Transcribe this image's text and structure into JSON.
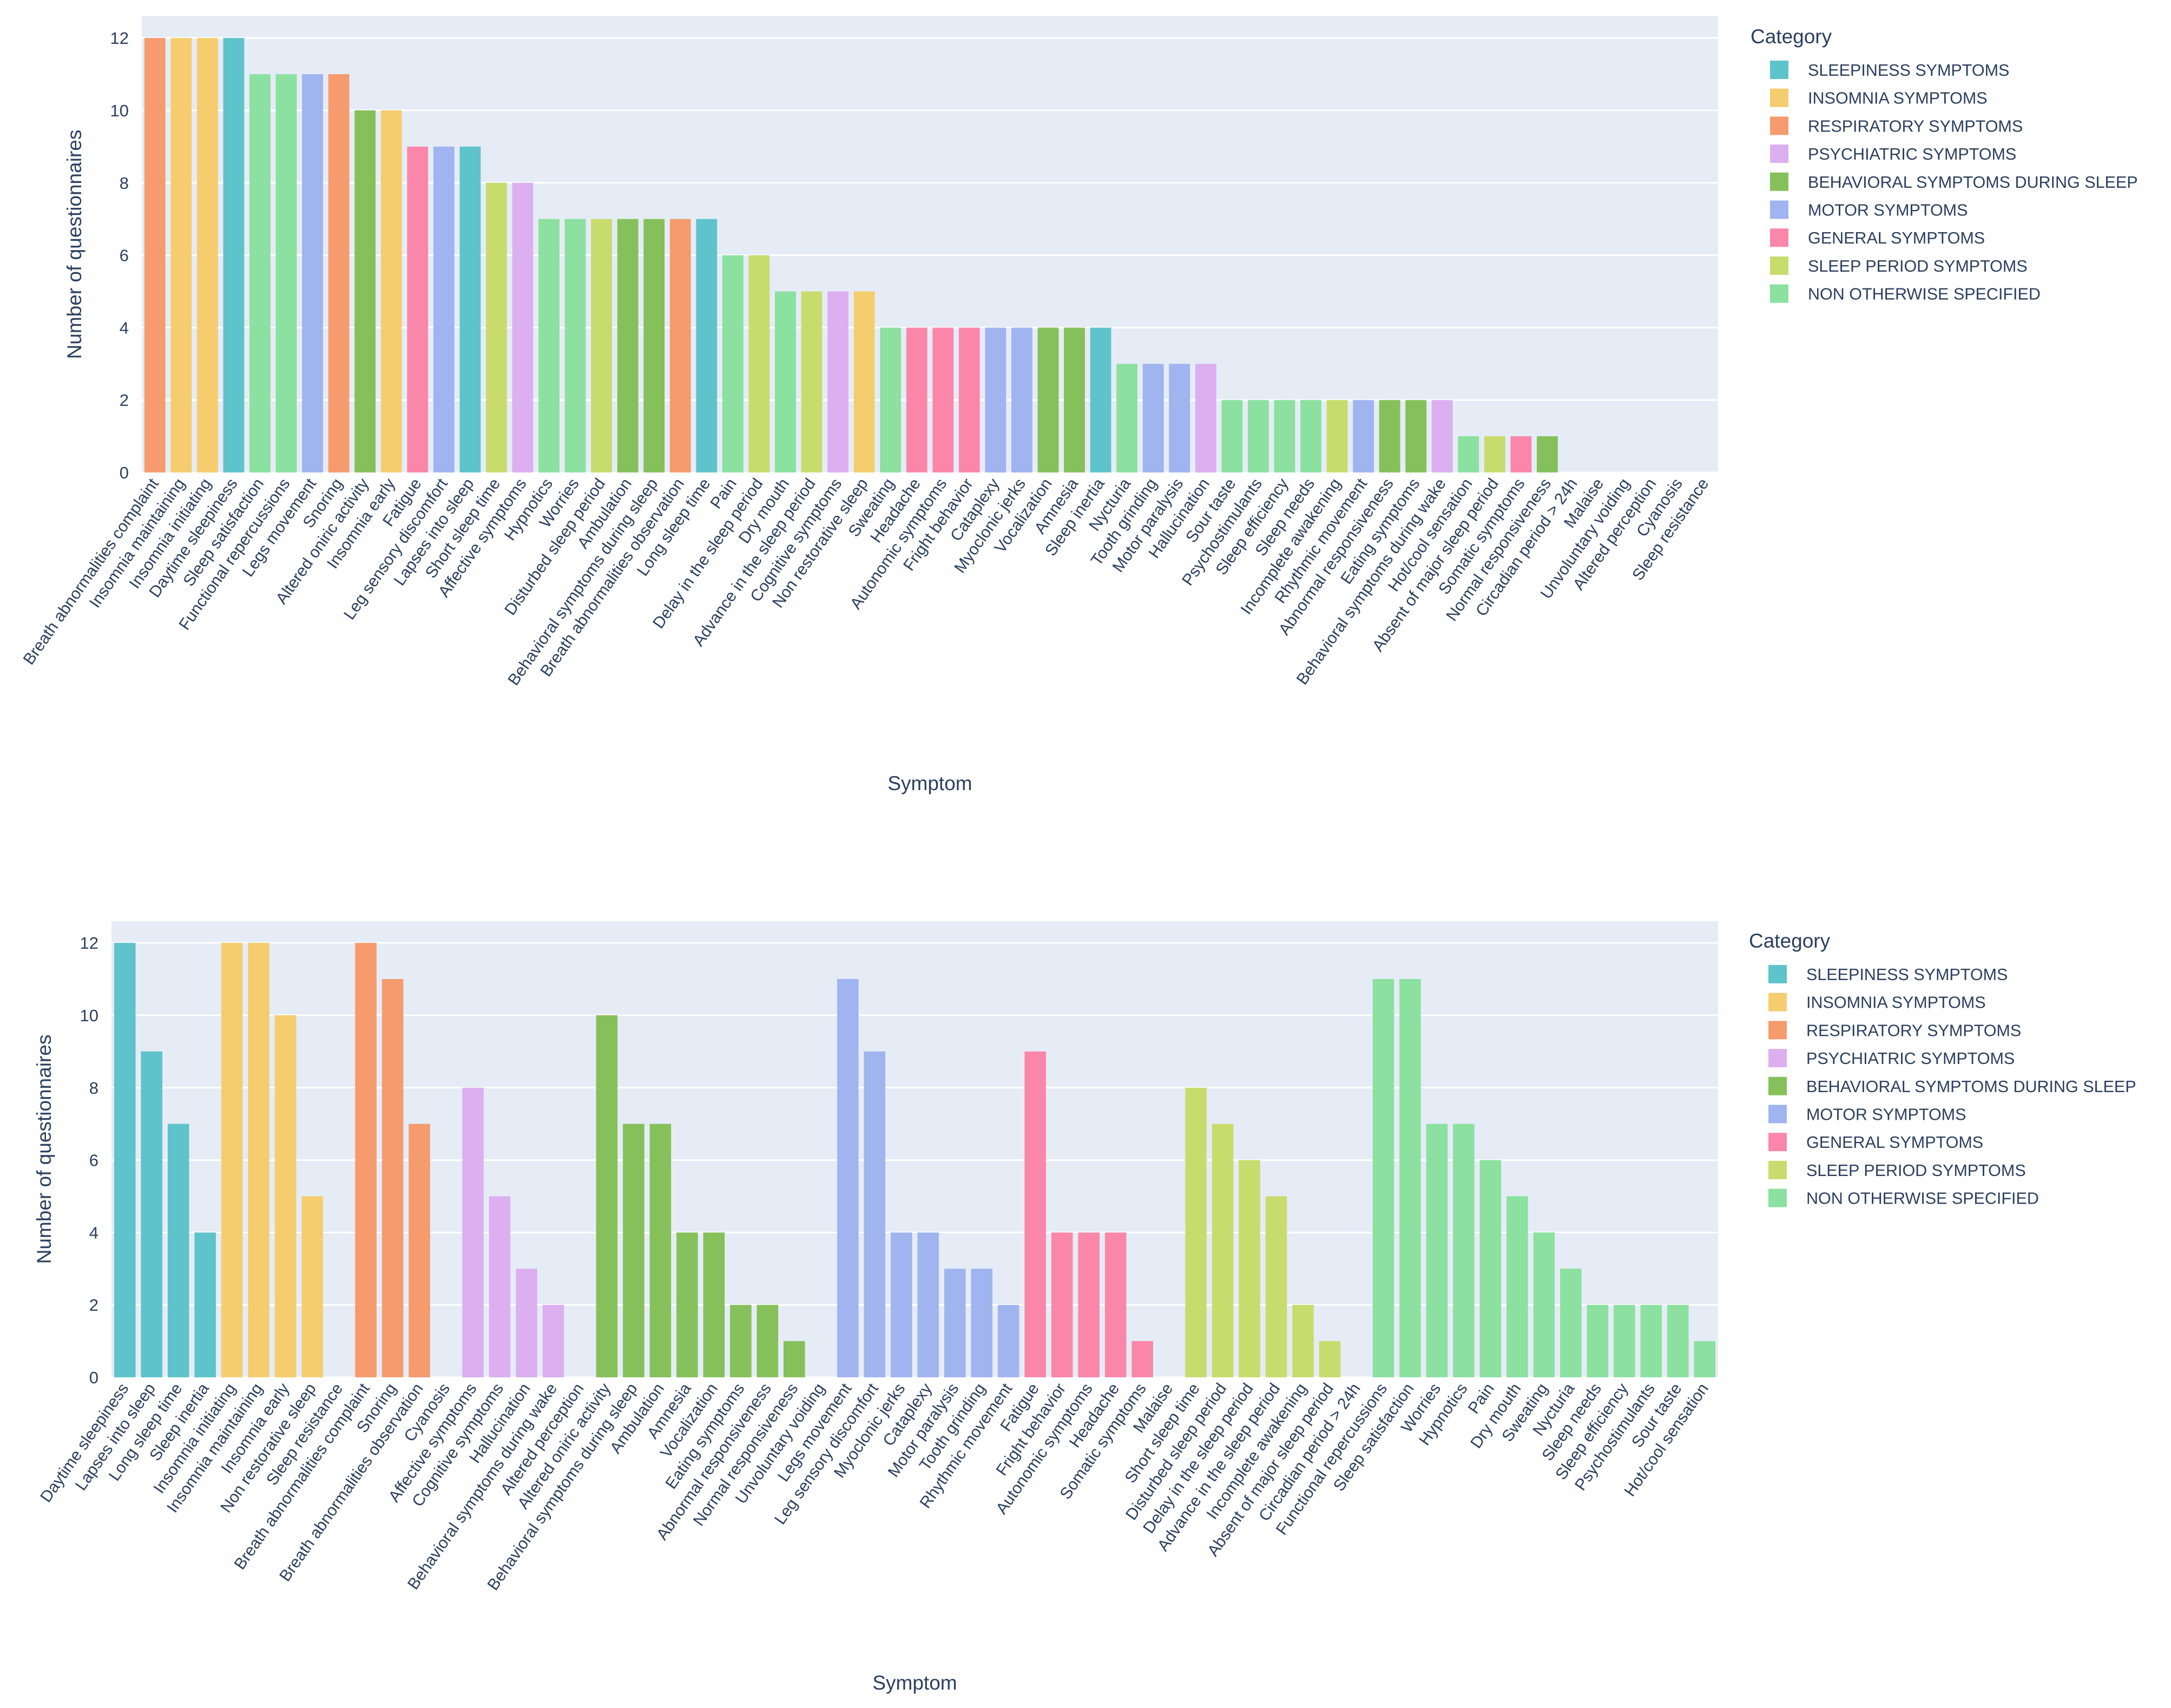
{
  "categories": [
    {
      "key": "sleepiness",
      "name": "SLEEPINESS SYMPTOMS",
      "color": "#5fc3cb"
    },
    {
      "key": "insomnia",
      "name": "INSOMNIA SYMPTOMS",
      "color": "#f5cd6e"
    },
    {
      "key": "respiratory",
      "name": "RESPIRATORY SYMPTOMS",
      "color": "#f59b6e"
    },
    {
      "key": "psychiatric",
      "name": "PSYCHIATRIC SYMPTOMS",
      "color": "#dcb0f0"
    },
    {
      "key": "behavioral",
      "name": "BEHAVIORAL SYMPTOMS DURING SLEEP",
      "color": "#86c05a"
    },
    {
      "key": "motor",
      "name": "MOTOR SYMPTOMS",
      "color": "#a0b4f0"
    },
    {
      "key": "general",
      "name": "GENERAL SYMPTOMS",
      "color": "#fa87aa"
    },
    {
      "key": "sleep_period",
      "name": "SLEEP PERIOD SYMPTOMS",
      "color": "#c8dc6e"
    },
    {
      "key": "nos",
      "name": "NON OTHERWISE SPECIFIED",
      "color": "#8ce0a0"
    }
  ],
  "chart_data": [
    {
      "type": "bar",
      "order": "sorted by count",
      "xlabel": "Symptom",
      "ylabel": "Number of questionnaires",
      "ylim": [
        0,
        12.6
      ],
      "yticks": [
        0,
        2,
        4,
        6,
        8,
        10,
        12
      ],
      "legend_title": "Category",
      "legend_position": "top-right",
      "bars": [
        {
          "label": "Breath abnormalities complaint",
          "value": 12,
          "cat": "respiratory"
        },
        {
          "label": "Insomnia maintaining",
          "value": 12,
          "cat": "insomnia"
        },
        {
          "label": "Insomnia initiating",
          "value": 12,
          "cat": "insomnia"
        },
        {
          "label": "Daytime sleepiness",
          "value": 12,
          "cat": "sleepiness"
        },
        {
          "label": "Sleep satisfaction",
          "value": 11,
          "cat": "nos"
        },
        {
          "label": "Functional repercussions",
          "value": 11,
          "cat": "nos"
        },
        {
          "label": "Legs movement",
          "value": 11,
          "cat": "motor"
        },
        {
          "label": "Snoring",
          "value": 11,
          "cat": "respiratory"
        },
        {
          "label": "Altered oniric activity",
          "value": 10,
          "cat": "behavioral"
        },
        {
          "label": "Insomnia early",
          "value": 10,
          "cat": "insomnia"
        },
        {
          "label": "Fatigue",
          "value": 9,
          "cat": "general"
        },
        {
          "label": "Leg sensory discomfort",
          "value": 9,
          "cat": "motor"
        },
        {
          "label": "Lapses into sleep",
          "value": 9,
          "cat": "sleepiness"
        },
        {
          "label": "Short sleep time",
          "value": 8,
          "cat": "sleep_period"
        },
        {
          "label": "Affective symptoms",
          "value": 8,
          "cat": "psychiatric"
        },
        {
          "label": "Hypnotics",
          "value": 7,
          "cat": "nos"
        },
        {
          "label": "Worries",
          "value": 7,
          "cat": "nos"
        },
        {
          "label": "Disturbed sleep period",
          "value": 7,
          "cat": "sleep_period"
        },
        {
          "label": "Ambulation",
          "value": 7,
          "cat": "behavioral"
        },
        {
          "label": "Behavioral symptoms during sleep",
          "value": 7,
          "cat": "behavioral"
        },
        {
          "label": "Breath abnormalities observation",
          "value": 7,
          "cat": "respiratory"
        },
        {
          "label": "Long sleep time",
          "value": 7,
          "cat": "sleepiness"
        },
        {
          "label": "Pain",
          "value": 6,
          "cat": "nos"
        },
        {
          "label": "Delay in the sleep period",
          "value": 6,
          "cat": "sleep_period"
        },
        {
          "label": "Dry mouth",
          "value": 5,
          "cat": "nos"
        },
        {
          "label": "Advance in the sleep period",
          "value": 5,
          "cat": "sleep_period"
        },
        {
          "label": "Cognitive symptoms",
          "value": 5,
          "cat": "psychiatric"
        },
        {
          "label": "Non restorative sleep",
          "value": 5,
          "cat": "insomnia"
        },
        {
          "label": "Sweating",
          "value": 4,
          "cat": "nos"
        },
        {
          "label": "Headache",
          "value": 4,
          "cat": "general"
        },
        {
          "label": "Autonomic symptoms",
          "value": 4,
          "cat": "general"
        },
        {
          "label": "Fright behavior",
          "value": 4,
          "cat": "general"
        },
        {
          "label": "Cataplexy",
          "value": 4,
          "cat": "motor"
        },
        {
          "label": "Myoclonic jerks",
          "value": 4,
          "cat": "motor"
        },
        {
          "label": "Vocalization",
          "value": 4,
          "cat": "behavioral"
        },
        {
          "label": "Amnesia",
          "value": 4,
          "cat": "behavioral"
        },
        {
          "label": "Sleep inertia",
          "value": 4,
          "cat": "sleepiness"
        },
        {
          "label": "Nycturia",
          "value": 3,
          "cat": "nos"
        },
        {
          "label": "Tooth grinding",
          "value": 3,
          "cat": "motor"
        },
        {
          "label": "Motor paralysis",
          "value": 3,
          "cat": "motor"
        },
        {
          "label": "Hallucination",
          "value": 3,
          "cat": "psychiatric"
        },
        {
          "label": "Sour taste",
          "value": 2,
          "cat": "nos"
        },
        {
          "label": "Psychostimulants",
          "value": 2,
          "cat": "nos"
        },
        {
          "label": "Sleep efficiency",
          "value": 2,
          "cat": "nos"
        },
        {
          "label": "Sleep needs",
          "value": 2,
          "cat": "nos"
        },
        {
          "label": "Incomplete awakening",
          "value": 2,
          "cat": "sleep_period"
        },
        {
          "label": "Rhythmic movement",
          "value": 2,
          "cat": "motor"
        },
        {
          "label": "Abnormal responsiveness",
          "value": 2,
          "cat": "behavioral"
        },
        {
          "label": "Eating symptoms",
          "value": 2,
          "cat": "behavioral"
        },
        {
          "label": "Behavioral symptoms during wake",
          "value": 2,
          "cat": "psychiatric"
        },
        {
          "label": "Hot/cool sensation",
          "value": 1,
          "cat": "nos"
        },
        {
          "label": "Absent of major sleep period",
          "value": 1,
          "cat": "sleep_period"
        },
        {
          "label": "Somatic symptoms",
          "value": 1,
          "cat": "general"
        },
        {
          "label": "Normal responsiveness",
          "value": 1,
          "cat": "behavioral"
        },
        {
          "label": "Circadian period > 24h",
          "value": 0,
          "cat": "sleep_period"
        },
        {
          "label": "Malaise",
          "value": 0,
          "cat": "general"
        },
        {
          "label": "Unvoluntary voiding",
          "value": 0,
          "cat": "behavioral"
        },
        {
          "label": "Altered perception",
          "value": 0,
          "cat": "psychiatric"
        },
        {
          "label": "Cyanosis",
          "value": 0,
          "cat": "respiratory"
        },
        {
          "label": "Sleep resistance",
          "value": 0,
          "cat": "insomnia"
        }
      ]
    },
    {
      "type": "bar",
      "order": "grouped by category",
      "xlabel": "Symptom",
      "ylabel": "Number of questionnaires",
      "ylim": [
        0,
        12.6
      ],
      "yticks": [
        0,
        2,
        4,
        6,
        8,
        10,
        12
      ],
      "legend_title": "Category",
      "legend_position": "top-right",
      "bars": [
        {
          "label": "Daytime sleepiness",
          "value": 12,
          "cat": "sleepiness"
        },
        {
          "label": "Lapses into sleep",
          "value": 9,
          "cat": "sleepiness"
        },
        {
          "label": "Long sleep time",
          "value": 7,
          "cat": "sleepiness"
        },
        {
          "label": "Sleep inertia",
          "value": 4,
          "cat": "sleepiness"
        },
        {
          "label": "Insomnia initiating",
          "value": 12,
          "cat": "insomnia"
        },
        {
          "label": "Insomnia maintaining",
          "value": 12,
          "cat": "insomnia"
        },
        {
          "label": "Insomnia early",
          "value": 10,
          "cat": "insomnia"
        },
        {
          "label": "Non restorative sleep",
          "value": 5,
          "cat": "insomnia"
        },
        {
          "label": "Sleep resistance",
          "value": 0,
          "cat": "insomnia"
        },
        {
          "label": "Breath abnormalities complaint",
          "value": 12,
          "cat": "respiratory"
        },
        {
          "label": "Snoring",
          "value": 11,
          "cat": "respiratory"
        },
        {
          "label": "Breath abnormalities observation",
          "value": 7,
          "cat": "respiratory"
        },
        {
          "label": "Cyanosis",
          "value": 0,
          "cat": "respiratory"
        },
        {
          "label": "Affective symptoms",
          "value": 8,
          "cat": "psychiatric"
        },
        {
          "label": "Cognitive symptoms",
          "value": 5,
          "cat": "psychiatric"
        },
        {
          "label": "Hallucination",
          "value": 3,
          "cat": "psychiatric"
        },
        {
          "label": "Behavioral symptoms during wake",
          "value": 2,
          "cat": "psychiatric"
        },
        {
          "label": "Altered perception",
          "value": 0,
          "cat": "psychiatric"
        },
        {
          "label": "Altered oniric activity",
          "value": 10,
          "cat": "behavioral"
        },
        {
          "label": "Behavioral symptoms during sleep",
          "value": 7,
          "cat": "behavioral"
        },
        {
          "label": "Ambulation",
          "value": 7,
          "cat": "behavioral"
        },
        {
          "label": "Amnesia",
          "value": 4,
          "cat": "behavioral"
        },
        {
          "label": "Vocalization",
          "value": 4,
          "cat": "behavioral"
        },
        {
          "label": "Eating symptoms",
          "value": 2,
          "cat": "behavioral"
        },
        {
          "label": "Abnormal responsiveness",
          "value": 2,
          "cat": "behavioral"
        },
        {
          "label": "Normal responsiveness",
          "value": 1,
          "cat": "behavioral"
        },
        {
          "label": "Unvoluntary voiding",
          "value": 0,
          "cat": "behavioral"
        },
        {
          "label": "Legs movement",
          "value": 11,
          "cat": "motor"
        },
        {
          "label": "Leg sensory discomfort",
          "value": 9,
          "cat": "motor"
        },
        {
          "label": "Myoclonic jerks",
          "value": 4,
          "cat": "motor"
        },
        {
          "label": "Cataplexy",
          "value": 4,
          "cat": "motor"
        },
        {
          "label": "Motor paralysis",
          "value": 3,
          "cat": "motor"
        },
        {
          "label": "Tooth grinding",
          "value": 3,
          "cat": "motor"
        },
        {
          "label": "Rhythmic movement",
          "value": 2,
          "cat": "motor"
        },
        {
          "label": "Fatigue",
          "value": 9,
          "cat": "general"
        },
        {
          "label": "Fright behavior",
          "value": 4,
          "cat": "general"
        },
        {
          "label": "Autonomic symptoms",
          "value": 4,
          "cat": "general"
        },
        {
          "label": "Headache",
          "value": 4,
          "cat": "general"
        },
        {
          "label": "Somatic symptoms",
          "value": 1,
          "cat": "general"
        },
        {
          "label": "Malaise",
          "value": 0,
          "cat": "general"
        },
        {
          "label": "Short sleep time",
          "value": 8,
          "cat": "sleep_period"
        },
        {
          "label": "Disturbed sleep period",
          "value": 7,
          "cat": "sleep_period"
        },
        {
          "label": "Delay in the sleep period",
          "value": 6,
          "cat": "sleep_period"
        },
        {
          "label": "Advance in the sleep period",
          "value": 5,
          "cat": "sleep_period"
        },
        {
          "label": "Incomplete awakening",
          "value": 2,
          "cat": "sleep_period"
        },
        {
          "label": "Absent of major sleep period",
          "value": 1,
          "cat": "sleep_period"
        },
        {
          "label": "Circadian period > 24h",
          "value": 0,
          "cat": "sleep_period"
        },
        {
          "label": "Functional repercussions",
          "value": 11,
          "cat": "nos"
        },
        {
          "label": "Sleep satisfaction",
          "value": 11,
          "cat": "nos"
        },
        {
          "label": "Worries",
          "value": 7,
          "cat": "nos"
        },
        {
          "label": "Hypnotics",
          "value": 7,
          "cat": "nos"
        },
        {
          "label": "Pain",
          "value": 6,
          "cat": "nos"
        },
        {
          "label": "Dry mouth",
          "value": 5,
          "cat": "nos"
        },
        {
          "label": "Sweating",
          "value": 4,
          "cat": "nos"
        },
        {
          "label": "Nycturia",
          "value": 3,
          "cat": "nos"
        },
        {
          "label": "Sleep needs",
          "value": 2,
          "cat": "nos"
        },
        {
          "label": "Sleep efficiency",
          "value": 2,
          "cat": "nos"
        },
        {
          "label": "Psychostimulants",
          "value": 2,
          "cat": "nos"
        },
        {
          "label": "Sour taste",
          "value": 2,
          "cat": "nos"
        },
        {
          "label": "Hot/cool sensation",
          "value": 1,
          "cat": "nos"
        }
      ]
    }
  ]
}
